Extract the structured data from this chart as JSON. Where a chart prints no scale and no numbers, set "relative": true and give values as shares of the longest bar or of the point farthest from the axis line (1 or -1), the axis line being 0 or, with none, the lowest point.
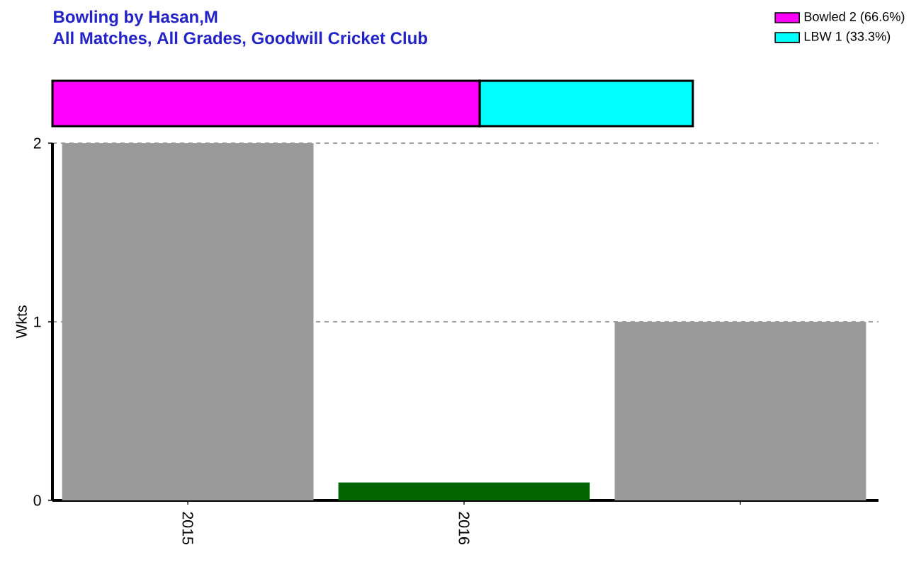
{
  "chart_data": [
    {
      "type": "bar",
      "title": "Bowling by Hasan,M",
      "subtitle": "All Matches, All Grades, Goodwill Cricket Club",
      "orientation": "horizontal",
      "stacked": true,
      "relative": true,
      "categories": [
        null
      ],
      "series": [
        {
          "name": "Bowled 2 (66.6%)",
          "color": "#ff00ff",
          "values": [
            0.667
          ]
        },
        {
          "name": "LBW 1 (33.3%)",
          "color": "#00ffff",
          "values": [
            0.333
          ]
        }
      ],
      "legend": "top right"
    },
    {
      "type": "bar",
      "categories": [
        "2015",
        "2016",
        null
      ],
      "values": [
        2,
        0.1,
        1
      ],
      "colors": [
        "#9a9a9a",
        "#006400",
        "#9a9a9a"
      ],
      "ylabel": "Wkts",
      "ylim": [
        0,
        2
      ],
      "yticks": [
        0,
        1,
        2
      ],
      "grid": "y"
    }
  ]
}
